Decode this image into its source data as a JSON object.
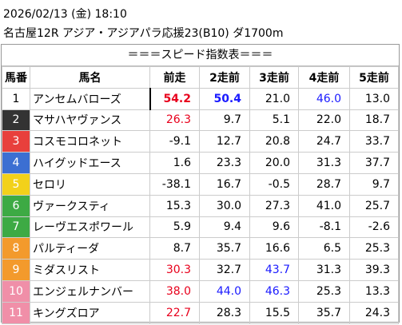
{
  "header": {
    "datetime": "2026/02/13 (金) 18:10",
    "race": "名古屋12R アジア・アジアパラ応援23(B10) ダ1700m"
  },
  "table": {
    "title": "＝＝＝スピード指数表＝＝＝",
    "columns": [
      "馬番",
      "馬名",
      "前走",
      "2走前",
      "3走前",
      "4走前",
      "5走前"
    ],
    "rows": [
      {
        "no": "1",
        "name": "アンセムバローズ",
        "gate_color": "#ffffff",
        "gate_text": "#000000",
        "values": [
          "54.2",
          "50.4",
          "21.0",
          "46.0",
          "13.0"
        ],
        "value_colors": [
          "#e8001c",
          "#1a1aff",
          "#000000",
          "#1a1aff",
          "#000000"
        ]
      },
      {
        "no": "2",
        "name": "マサハヤヴァンス",
        "gate_color": "#333333",
        "gate_text": "#ffffff",
        "values": [
          "26.3",
          "9.7",
          "5.1",
          "22.0",
          "18.7"
        ],
        "value_colors": [
          "#e8001c",
          "#000000",
          "#000000",
          "#000000",
          "#000000"
        ]
      },
      {
        "no": "3",
        "name": "コスモコロネット",
        "gate_color": "#e8403c",
        "gate_text": "#ffffff",
        "values": [
          "-9.1",
          "12.7",
          "20.8",
          "24.7",
          "33.7"
        ],
        "value_colors": [
          "#000000",
          "#000000",
          "#000000",
          "#000000",
          "#000000"
        ]
      },
      {
        "no": "4",
        "name": "ハイグッドエース",
        "gate_color": "#3c6fd2",
        "gate_text": "#ffffff",
        "values": [
          "1.6",
          "23.3",
          "20.0",
          "31.3",
          "37.7"
        ],
        "value_colors": [
          "#000000",
          "#000000",
          "#000000",
          "#000000",
          "#000000"
        ]
      },
      {
        "no": "5",
        "name": "セロリ",
        "gate_color": "#f2d11a",
        "gate_text": "#ffffff",
        "values": [
          "-38.1",
          "16.7",
          "-0.5",
          "28.7",
          "9.7"
        ],
        "value_colors": [
          "#000000",
          "#000000",
          "#000000",
          "#000000",
          "#000000"
        ]
      },
      {
        "no": "6",
        "name": "ヴァークスティ",
        "gate_color": "#3daa44",
        "gate_text": "#ffffff",
        "values": [
          "15.3",
          "30.0",
          "27.3",
          "41.0",
          "25.7"
        ],
        "value_colors": [
          "#000000",
          "#000000",
          "#000000",
          "#000000",
          "#000000"
        ]
      },
      {
        "no": "7",
        "name": "レーヴエスポワール",
        "gate_color": "#3daa44",
        "gate_text": "#ffffff",
        "values": [
          "5.9",
          "9.4",
          "9.6",
          "-8.1",
          "-2.6"
        ],
        "value_colors": [
          "#000000",
          "#000000",
          "#000000",
          "#000000",
          "#000000"
        ]
      },
      {
        "no": "8",
        "name": "パルティーダ",
        "gate_color": "#f39a2c",
        "gate_text": "#ffffff",
        "values": [
          "8.7",
          "35.7",
          "16.6",
          "6.5",
          "25.3"
        ],
        "value_colors": [
          "#000000",
          "#000000",
          "#000000",
          "#000000",
          "#000000"
        ]
      },
      {
        "no": "9",
        "name": "ミダスリスト",
        "gate_color": "#f39a2c",
        "gate_text": "#ffffff",
        "values": [
          "30.3",
          "32.7",
          "43.7",
          "31.3",
          "39.3"
        ],
        "value_colors": [
          "#e8001c",
          "#000000",
          "#1a1aff",
          "#000000",
          "#000000"
        ]
      },
      {
        "no": "10",
        "name": "エンジェルナンバー",
        "gate_color": "#f08fa8",
        "gate_text": "#ffffff",
        "values": [
          "38.0",
          "44.0",
          "46.3",
          "25.3",
          "13.3"
        ],
        "value_colors": [
          "#e8001c",
          "#1a1aff",
          "#1a1aff",
          "#000000",
          "#000000"
        ]
      },
      {
        "no": "11",
        "name": "キングズロア",
        "gate_color": "#f08fa8",
        "gate_text": "#ffffff",
        "values": [
          "22.7",
          "28.3",
          "15.5",
          "35.7",
          "24.3"
        ],
        "value_colors": [
          "#e8001c",
          "#000000",
          "#000000",
          "#000000",
          "#000000"
        ]
      }
    ]
  }
}
